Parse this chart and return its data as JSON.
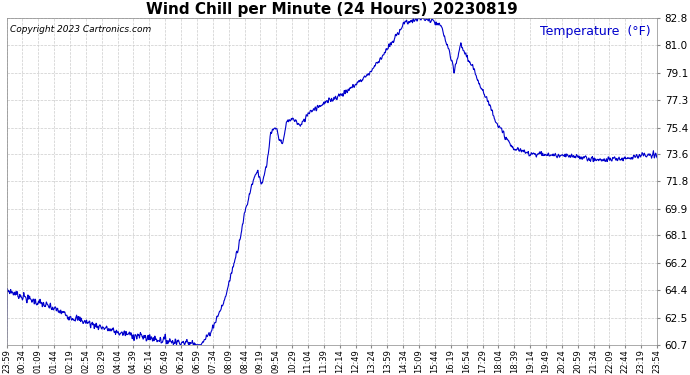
{
  "title": "Wind Chill per Minute (24 Hours) 20230819",
  "copyright_text": "Copyright 2023 Cartronics.com",
  "legend_label": "Temperature  (°F)",
  "line_color": "#0000cc",
  "background_color": "#ffffff",
  "grid_color": "#cccccc",
  "ylim_min": 60.7,
  "ylim_max": 82.8,
  "yticks": [
    60.7,
    62.5,
    64.4,
    66.2,
    68.1,
    69.9,
    71.8,
    73.6,
    75.4,
    77.3,
    79.1,
    81.0,
    82.8
  ],
  "x_labels": [
    "23:59",
    "00:34",
    "01:09",
    "01:44",
    "02:19",
    "02:54",
    "03:29",
    "04:04",
    "04:39",
    "05:14",
    "05:49",
    "06:24",
    "06:59",
    "07:34",
    "08:09",
    "08:44",
    "09:19",
    "09:54",
    "10:29",
    "11:04",
    "11:39",
    "12:14",
    "12:49",
    "13:24",
    "13:59",
    "14:34",
    "15:09",
    "15:44",
    "16:19",
    "16:54",
    "17:29",
    "18:04",
    "18:39",
    "19:14",
    "19:49",
    "20:24",
    "20:59",
    "21:34",
    "22:09",
    "22:44",
    "23:19",
    "23:54"
  ],
  "num_points": 1440,
  "title_fontsize": 11,
  "copyright_fontsize": 6.5,
  "legend_fontsize": 9,
  "ytick_fontsize": 7.5,
  "xtick_fontsize": 6.0
}
